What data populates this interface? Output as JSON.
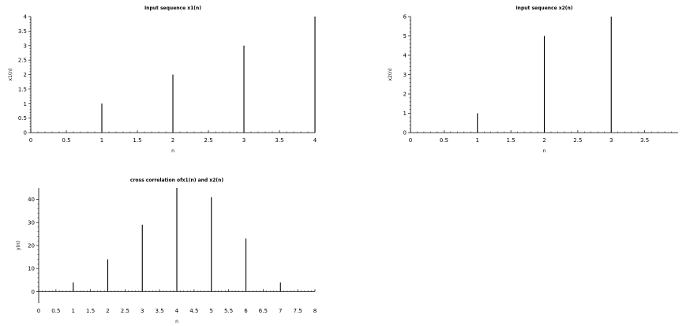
{
  "chart_data": [
    {
      "type": "stem",
      "title": "Input sequence x1(n)",
      "xlabel": "n",
      "ylabel": "x1(n)",
      "x": [
        0,
        1,
        2,
        3,
        4
      ],
      "values": [
        0,
        1,
        2,
        3,
        4
      ],
      "xlim": [
        0,
        4
      ],
      "ylim": [
        0,
        4
      ],
      "xticks": [
        "0",
        "0.5",
        "1",
        "1.5",
        "2",
        "2.5",
        "3",
        "3.5",
        "4"
      ],
      "yticks": [
        "0",
        "0.5",
        "1",
        "1.5",
        "2",
        "2.5",
        "3",
        "3.5",
        "4"
      ],
      "grid": false
    },
    {
      "type": "stem",
      "title": "Input sequence x2(n)",
      "xlabel": "n",
      "ylabel": "x2(n)",
      "x": [
        0,
        1,
        2,
        3
      ],
      "values": [
        0,
        1,
        5,
        6
      ],
      "xlim": [
        0,
        4
      ],
      "ylim": [
        0,
        6
      ],
      "xticks": [
        "0",
        "0.5",
        "1",
        "1.5",
        "2",
        "2.5",
        "3",
        "3.5"
      ],
      "yticks": [
        "0",
        "1",
        "2",
        "3",
        "4",
        "5",
        "6"
      ],
      "grid": false
    },
    {
      "type": "stem",
      "title": "cross correlation ofx1(n) and x2(n)",
      "xlabel": "n",
      "ylabel": "y(n)",
      "x": [
        0,
        1,
        2,
        3,
        4,
        5,
        6,
        7
      ],
      "values": [
        0,
        4,
        14,
        29,
        45,
        41,
        23,
        4
      ],
      "xlim": [
        0,
        8
      ],
      "ylim": [
        -5,
        45
      ],
      "xticks": [
        "0",
        "0.5",
        "1",
        "1.5",
        "2",
        "2.5",
        "3",
        "3.5",
        "4",
        "4.5",
        "5",
        "5.5",
        "6",
        "6.5",
        "7",
        "7.5",
        "8"
      ],
      "yticks": [
        "0",
        "10",
        "20",
        "30",
        "40"
      ],
      "grid": false
    }
  ]
}
